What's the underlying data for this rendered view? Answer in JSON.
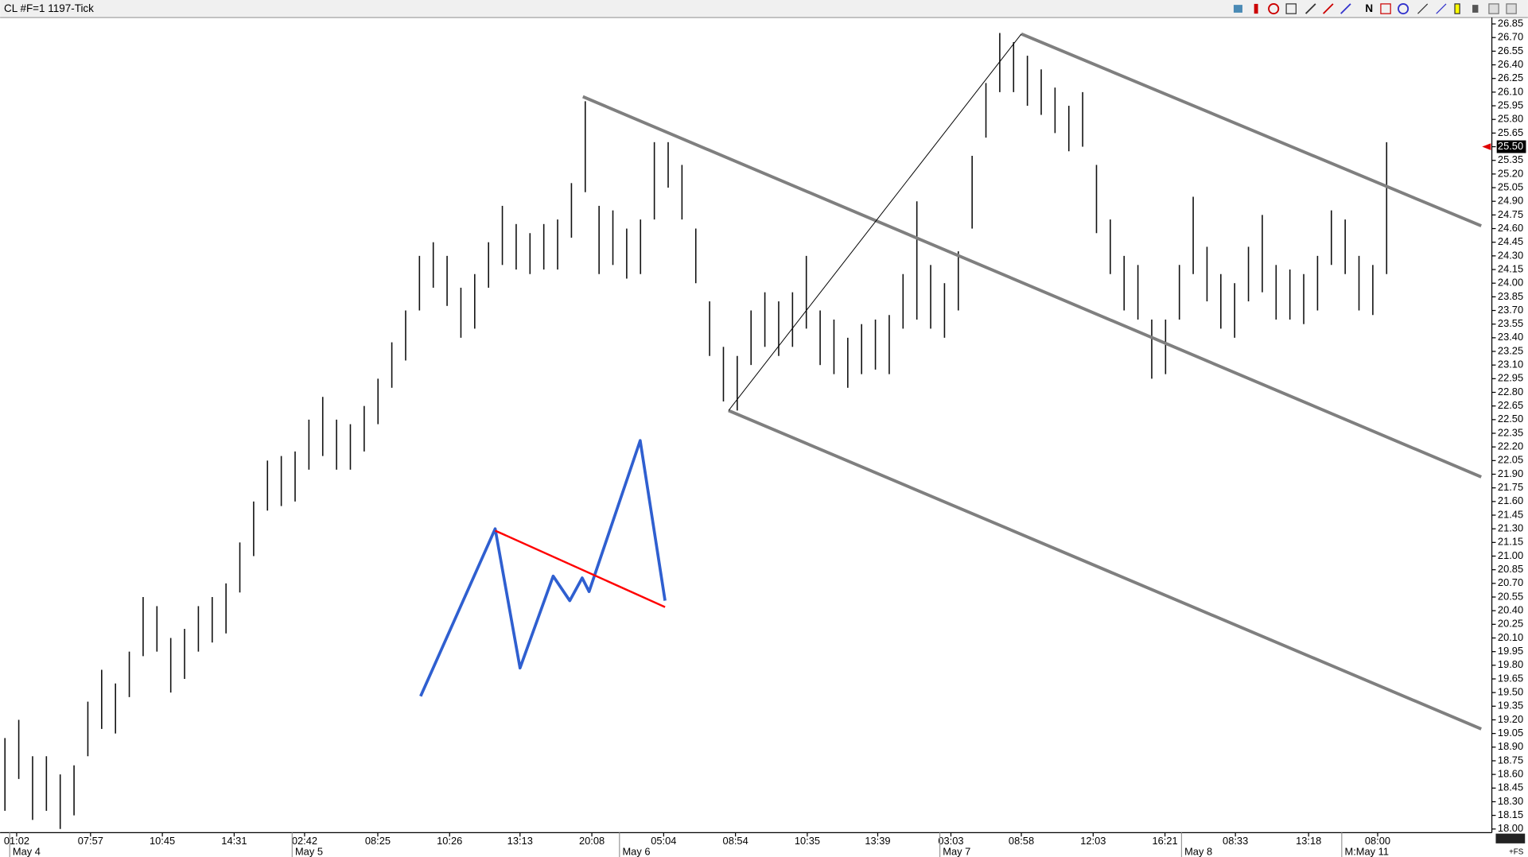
{
  "chart_data": {
    "type": "range-bar",
    "title": "CL #F=1 1197-Tick",
    "color": "#111111",
    "high": [
      19.0,
      19.2,
      18.8,
      18.8,
      18.6,
      18.7,
      19.4,
      19.75,
      19.6,
      19.95,
      20.55,
      20.45,
      20.1,
      20.2,
      20.45,
      20.55,
      20.7,
      21.15,
      21.6,
      22.05,
      22.1,
      22.15,
      22.5,
      22.75,
      22.5,
      22.45,
      22.65,
      22.95,
      23.35,
      23.7,
      24.3,
      24.45,
      24.3,
      23.95,
      24.1,
      24.45,
      24.85,
      24.65,
      24.55,
      24.65,
      24.7,
      25.1,
      26.0,
      24.85,
      24.8,
      24.6,
      24.7,
      25.55,
      25.55,
      25.3,
      24.6,
      23.8,
      23.3,
      23.2,
      23.7,
      23.9,
      23.8,
      23.9,
      24.3,
      23.7,
      23.6,
      23.4,
      23.55,
      23.6,
      23.65,
      24.1,
      24.9,
      24.2,
      24.0,
      24.35,
      25.4,
      26.2,
      26.75,
      26.65,
      26.5,
      26.35,
      26.15,
      25.95,
      26.1,
      25.3,
      24.7,
      24.3,
      24.2,
      23.6,
      23.6,
      24.2,
      24.95,
      24.4,
      24.1,
      24.0,
      24.4,
      24.75,
      24.2,
      24.15,
      24.1,
      24.3,
      24.8,
      24.7,
      24.3,
      24.2,
      25.55
    ],
    "low": [
      18.2,
      18.55,
      18.1,
      18.2,
      18.0,
      18.15,
      18.8,
      19.1,
      19.05,
      19.45,
      19.9,
      19.95,
      19.5,
      19.65,
      19.95,
      20.05,
      20.15,
      20.6,
      21.0,
      21.5,
      21.55,
      21.6,
      21.95,
      22.1,
      21.95,
      21.95,
      22.15,
      22.45,
      22.85,
      23.15,
      23.7,
      23.95,
      23.75,
      23.4,
      23.5,
      23.95,
      24.2,
      24.15,
      24.1,
      24.15,
      24.15,
      24.5,
      25.0,
      24.1,
      24.2,
      24.05,
      24.1,
      24.7,
      25.05,
      24.7,
      24.0,
      23.2,
      22.7,
      22.6,
      23.1,
      23.3,
      23.2,
      23.3,
      23.5,
      23.1,
      23.0,
      22.85,
      23.0,
      23.05,
      23.0,
      23.5,
      23.6,
      23.5,
      23.4,
      23.7,
      24.6,
      25.6,
      26.1,
      26.1,
      25.95,
      25.85,
      25.65,
      25.45,
      25.5,
      24.55,
      24.1,
      23.7,
      23.6,
      22.95,
      23.0,
      23.6,
      24.1,
      23.8,
      23.5,
      23.4,
      23.8,
      23.9,
      23.6,
      23.6,
      23.55,
      23.7,
      24.2,
      24.1,
      23.7,
      23.65,
      24.1
    ],
    "xlim": [
      -0.35,
      107.6
    ],
    "ylim": [
      17.96,
      26.92
    ],
    "yticks": [
      26.85,
      {
        "value": 26.7,
        "label": "26.70"
      },
      26.55,
      {
        "value": 26.4,
        "label": "26.40"
      },
      26.25,
      {
        "value": 26.1,
        "label": "26.10"
      },
      25.95,
      {
        "value": 25.8,
        "label": "25.80"
      },
      25.65,
      {
        "value": 25.5,
        "label": "25.50"
      },
      25.35,
      {
        "value": 25.2,
        "label": "25.20"
      },
      25.05,
      {
        "value": 24.9,
        "label": "24.90"
      },
      24.75,
      {
        "value": 24.6,
        "label": "24.60"
      },
      24.45,
      {
        "value": 24.3,
        "label": "24.30"
      },
      24.15,
      {
        "value": 24,
        "label": "24.00"
      },
      23.85,
      {
        "value": 23.7,
        "label": "23.70"
      },
      23.55,
      {
        "value": 23.4,
        "label": "23.40"
      },
      23.25,
      {
        "value": 23.1,
        "label": "23.10"
      },
      22.95,
      {
        "value": 22.8,
        "label": "22.80"
      },
      22.65,
      {
        "value": 22.5,
        "label": "22.50"
      },
      22.35,
      {
        "value": 22.2,
        "label": "22.20"
      },
      22.05,
      {
        "value": 21.9,
        "label": "21.90"
      },
      21.75,
      {
        "value": 21.6,
        "label": "21.60"
      },
      21.45,
      {
        "value": 21.3,
        "label": "21.30"
      },
      21.15,
      {
        "value": 21,
        "label": "21.00"
      },
      20.85,
      {
        "value": 20.7,
        "label": "20.70"
      },
      20.55,
      {
        "value": 20.4,
        "label": "20.40"
      },
      20.25,
      {
        "value": 20.1,
        "label": "20.10"
      },
      19.95,
      {
        "value": 19.8,
        "label": "19.80"
      },
      19.65,
      {
        "value": 19.5,
        "label": "19.50"
      },
      19.35,
      {
        "value": 19.2,
        "label": "19.20"
      },
      19.05,
      {
        "value": 18.9,
        "label": "18.90"
      },
      18.75,
      {
        "value": 18.6,
        "label": "18.60"
      },
      18.45,
      {
        "value": 18.3,
        "label": "18.30"
      },
      18.15,
      {
        "value": 18,
        "label": "18.00"
      }
    ],
    "xticks": [
      {
        "value": 0.85,
        "label": "01:02"
      },
      {
        "value": 6.2,
        "label": "07:57"
      },
      {
        "value": 11.4,
        "label": "10:45"
      },
      {
        "value": 16.6,
        "label": "14:31"
      },
      {
        "value": 21.7,
        "label": "02:42"
      },
      {
        "value": 27.0,
        "label": "08:25"
      },
      {
        "value": 32.2,
        "label": "10:26"
      },
      {
        "value": 37.3,
        "label": "13:13"
      },
      {
        "value": 42.5,
        "label": "20:08"
      },
      {
        "value": 47.7,
        "label": "05:04"
      },
      {
        "value": 52.9,
        "label": "08:54"
      },
      {
        "value": 58.1,
        "label": "10:35"
      },
      {
        "value": 63.2,
        "label": "13:39"
      },
      {
        "value": 68.5,
        "label": "03:03"
      },
      {
        "value": 73.6,
        "label": "08:58"
      },
      {
        "value": 78.8,
        "label": "12:03"
      },
      {
        "value": 84.0,
        "label": "16:21"
      },
      {
        "value": 89.1,
        "label": "08:33"
      },
      {
        "value": 94.4,
        "label": "13:18"
      },
      {
        "value": 99.4,
        "label": "08:00"
      }
    ],
    "xdates": [
      {
        "value": 0.35,
        "label": "May 4"
      },
      {
        "value": 20.8,
        "label": "May 5"
      },
      {
        "value": 44.5,
        "label": "May 6"
      },
      {
        "value": 67.7,
        "label": "May 7"
      },
      {
        "value": 85.2,
        "label": "May 8"
      },
      {
        "value": 96.8,
        "label": "M:May 11"
      }
    ],
    "last_price": {
      "value": 25.5,
      "label": "25.50"
    },
    "drawings": [
      {
        "color": "#7f7f7f",
        "width": 3.2,
        "points": [
          [
            73.6,
            26.74
          ],
          [
            106.9,
            24.63
          ]
        ]
      },
      {
        "color": "#7f7f7f",
        "width": 3.2,
        "points": [
          [
            41.85,
            26.05
          ],
          [
            106.9,
            21.87
          ]
        ]
      },
      {
        "color": "#7f7f7f",
        "width": 3.2,
        "points": [
          [
            52.4,
            22.6
          ],
          [
            106.9,
            19.1
          ]
        ]
      },
      {
        "color": "#000000",
        "width": 0.8,
        "points": [
          [
            52.4,
            22.6
          ],
          [
            73.6,
            26.74
          ]
        ]
      },
      {
        "color": "#2f5fd0",
        "width": 3,
        "points": [
          [
            30.1,
            19.46
          ],
          [
            35.5,
            21.3
          ],
          [
            37.3,
            19.77
          ],
          [
            39.7,
            20.78
          ],
          [
            40.9,
            20.51
          ],
          [
            41.8,
            20.76
          ],
          [
            42.3,
            20.61
          ],
          [
            46.0,
            22.27
          ],
          [
            47.8,
            20.51
          ]
        ]
      },
      {
        "color": "#ff0000",
        "width": 2,
        "points": [
          [
            35.5,
            21.28
          ],
          [
            47.8,
            20.44
          ]
        ]
      }
    ]
  },
  "toolbar": {
    "label": "N"
  },
  "corner_label": "+FS"
}
